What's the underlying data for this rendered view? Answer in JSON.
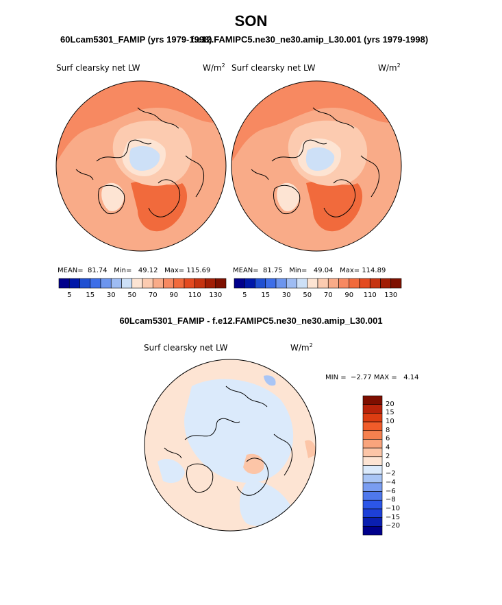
{
  "figure": {
    "title": "SON",
    "subtitle_left": "60Lcam5301_FAMIP (yrs 1979-1998)",
    "subtitle_right": "f.e12.FAMIPC5.ne30_ne30.amip_L30.001 (yrs 1979-1998)",
    "diff_title": "60Lcam5301_FAMIP - f.e12.FAMIPC5.ne30_ne30.amip_L30.001"
  },
  "colors": {
    "coast": "#000000",
    "abs_levels": [
      "#00008b",
      "#0018a8",
      "#1f4fd1",
      "#3d6ee8",
      "#6c95ee",
      "#9ebcf3",
      "#cde0f7",
      "#fde4d3",
      "#fccbb0",
      "#f9ab88",
      "#f78961",
      "#f16a3c",
      "#e34a20",
      "#c53310",
      "#a11e05",
      "#7d1000"
    ],
    "diff_levels": [
      "#00008b",
      "#0a1fb0",
      "#1d40d8",
      "#2c56e8",
      "#4f78ec",
      "#7a9df1",
      "#a9c5f5",
      "#dbeafb",
      "#fde4d3",
      "#fcc5a7",
      "#f9a47c",
      "#f6814f",
      "#f05c2a",
      "#dc3d12",
      "#b8230a",
      "#7e0e00"
    ]
  },
  "chart_data": [
    {
      "type": "heatmap",
      "projection": "polar-stereographic-north",
      "title": "Surf clearsky net LW",
      "units": "W/m",
      "units_exp": "2",
      "stats": {
        "mean_label": "MEAN=",
        "mean": "81.74",
        "min_label": "Min=",
        "min": "49.12",
        "max_label": "Max=",
        "max": "115.69"
      },
      "colorbar_ticks": [
        "5",
        "15",
        "30",
        "50",
        "70",
        "90",
        "110",
        "130"
      ]
    },
    {
      "type": "heatmap",
      "projection": "polar-stereographic-north",
      "title": "Surf clearsky net LW",
      "units": "W/m",
      "units_exp": "2",
      "stats": {
        "mean_label": "MEAN=",
        "mean": "81.75",
        "min_label": "Min=",
        "min": "49.04",
        "max_label": "Max=",
        "max": "114.89"
      },
      "colorbar_ticks": [
        "5",
        "15",
        "30",
        "50",
        "70",
        "90",
        "110",
        "130"
      ]
    },
    {
      "type": "heatmap",
      "projection": "polar-stereographic-north",
      "title": "Surf clearsky net LW",
      "units": "W/m",
      "units_exp": "2",
      "stats": {
        "min_label": "MIN =",
        "min": "−2.77",
        "max_label": "MAX =",
        "max": "4.14"
      },
      "colorbar_levels": [
        "20",
        "15",
        "10",
        "8",
        "6",
        "4",
        "2",
        "0",
        "−2",
        "−4",
        "−6",
        "−8",
        "−10",
        "−15",
        "−20"
      ]
    }
  ]
}
